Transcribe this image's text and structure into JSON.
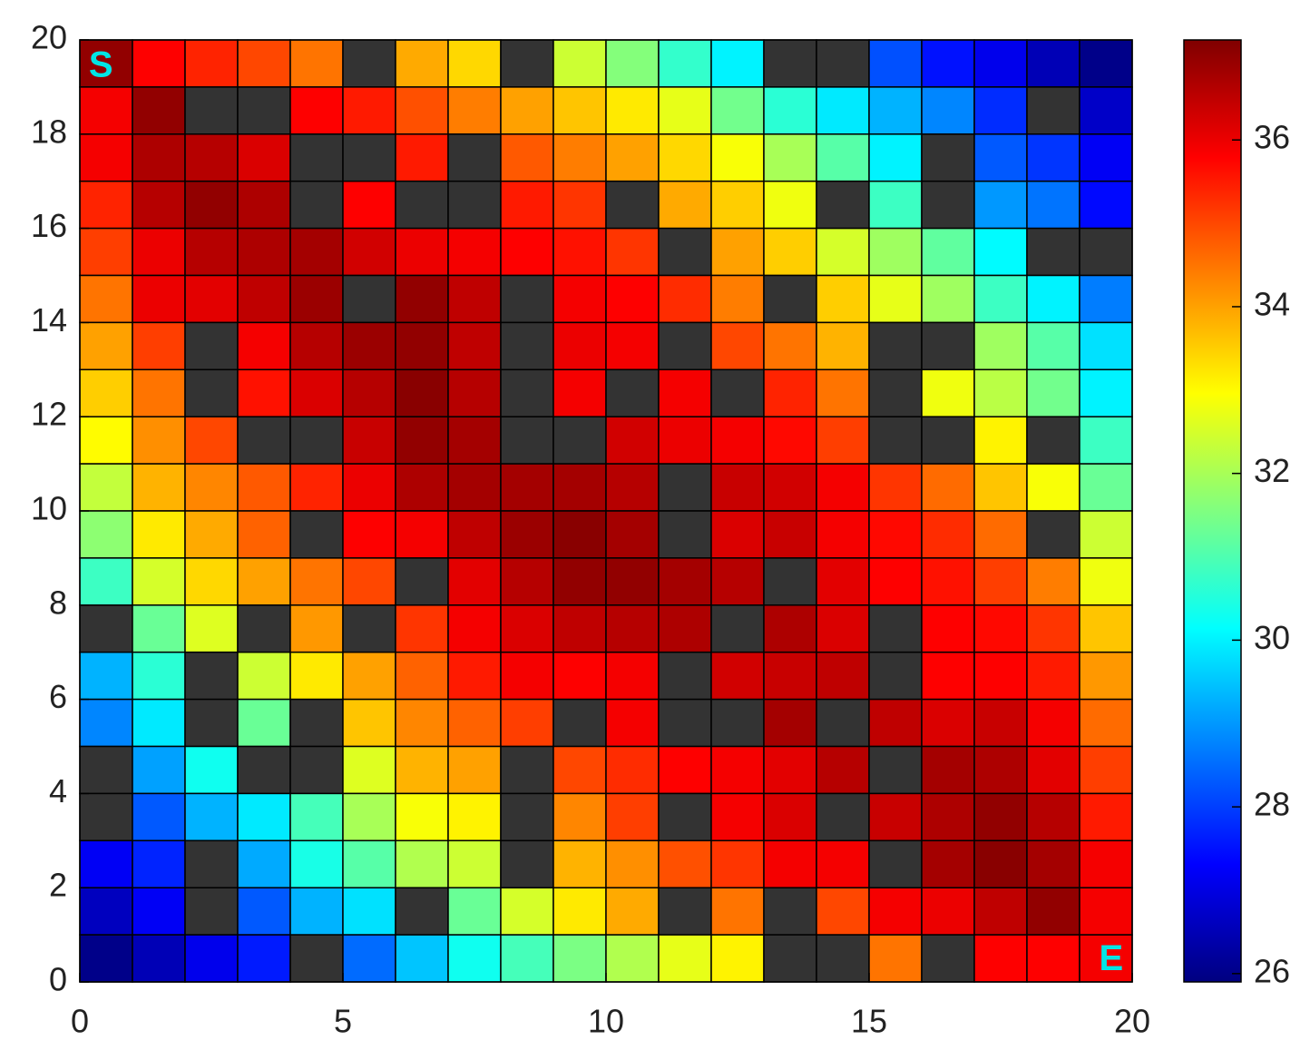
{
  "chart_data": {
    "type": "heatmap",
    "start_label": "S",
    "end_label": "E",
    "colormap": "jet",
    "missing_color": "#333333",
    "xlim": [
      0,
      20
    ],
    "ylim": [
      0,
      20
    ],
    "xticks": [
      0,
      5,
      10,
      15,
      20
    ],
    "yticks": [
      0,
      2,
      4,
      6,
      8,
      10,
      12,
      14,
      16,
      18,
      20
    ],
    "clim": [
      25.9,
      37.2
    ],
    "cticks": [
      26,
      28,
      30,
      32,
      34,
      36
    ],
    "z": [
      [
        37.0,
        35.8,
        35.4,
        35.0,
        34.5,
        null,
        33.9,
        33.4,
        null,
        32.4,
        31.6,
        30.7,
        30.0,
        null,
        null,
        28.2,
        27.5,
        27.1,
        26.5,
        26.0
      ],
      [
        35.9,
        37.0,
        null,
        null,
        35.8,
        35.5,
        34.9,
        34.4,
        34.0,
        33.6,
        33.2,
        32.7,
        31.4,
        30.6,
        29.9,
        29.3,
        28.8,
        27.8,
        null,
        26.7
      ],
      [
        35.9,
        36.7,
        36.6,
        36.2,
        null,
        null,
        35.5,
        null,
        34.8,
        34.4,
        34.0,
        33.4,
        32.9,
        32.0,
        31.1,
        30.0,
        null,
        28.3,
        27.9,
        27.2
      ],
      [
        35.4,
        36.6,
        37.0,
        36.7,
        null,
        35.8,
        null,
        null,
        35.5,
        35.2,
        null,
        33.9,
        33.5,
        32.8,
        null,
        30.8,
        null,
        29.0,
        28.6,
        27.4
      ],
      [
        35.1,
        36.0,
        36.6,
        36.7,
        36.8,
        36.3,
        36.0,
        35.9,
        35.8,
        35.6,
        35.2,
        null,
        34.0,
        33.5,
        32.5,
        31.9,
        31.2,
        30.1,
        null,
        null
      ],
      [
        34.5,
        36.0,
        36.1,
        36.5,
        36.9,
        null,
        37.0,
        36.5,
        null,
        35.9,
        35.8,
        35.3,
        34.4,
        null,
        33.5,
        32.7,
        31.9,
        30.8,
        30.0,
        28.7
      ],
      [
        34.0,
        35.1,
        null,
        35.9,
        36.6,
        36.9,
        37.0,
        36.5,
        null,
        36.0,
        35.9,
        null,
        35.0,
        34.5,
        33.8,
        null,
        null,
        31.9,
        31.1,
        29.8
      ],
      [
        33.5,
        34.5,
        null,
        35.6,
        36.2,
        36.6,
        37.1,
        36.6,
        null,
        35.9,
        null,
        35.9,
        null,
        35.4,
        34.5,
        null,
        32.8,
        32.2,
        31.4,
        30.0
      ],
      [
        33.0,
        34.2,
        35.0,
        null,
        null,
        36.4,
        37.0,
        36.8,
        null,
        null,
        36.3,
        36.0,
        35.9,
        35.7,
        35.1,
        null,
        null,
        33.1,
        null,
        30.8
      ],
      [
        32.3,
        33.8,
        34.3,
        34.8,
        35.4,
        36.0,
        36.7,
        36.8,
        36.8,
        36.8,
        36.6,
        null,
        36.4,
        36.3,
        35.9,
        35.2,
        34.6,
        33.6,
        32.9,
        31.3
      ],
      [
        31.7,
        33.2,
        33.9,
        34.7,
        null,
        35.8,
        35.9,
        36.5,
        36.9,
        37.1,
        36.8,
        null,
        36.2,
        36.4,
        35.9,
        35.7,
        35.3,
        34.6,
        null,
        32.4
      ],
      [
        30.8,
        32.5,
        33.4,
        34.0,
        34.5,
        35.0,
        null,
        36.1,
        36.6,
        37.0,
        37.0,
        36.8,
        36.6,
        null,
        36.1,
        35.8,
        35.6,
        35.1,
        34.4,
        32.8
      ],
      [
        null,
        31.3,
        32.6,
        null,
        34.1,
        null,
        35.2,
        35.9,
        36.2,
        36.5,
        36.6,
        36.7,
        null,
        36.7,
        36.2,
        null,
        35.8,
        35.7,
        35.2,
        33.6
      ],
      [
        29.3,
        30.6,
        null,
        32.4,
        33.2,
        34.0,
        34.7,
        35.5,
        35.9,
        35.8,
        35.9,
        null,
        36.3,
        36.4,
        36.5,
        null,
        35.8,
        35.8,
        35.5,
        34.1
      ],
      [
        28.8,
        29.9,
        null,
        31.3,
        null,
        33.6,
        34.3,
        34.7,
        35.1,
        null,
        35.9,
        null,
        null,
        36.8,
        null,
        36.5,
        36.2,
        36.4,
        35.9,
        34.6
      ],
      [
        null,
        29.1,
        30.3,
        null,
        null,
        32.6,
        33.8,
        34.0,
        null,
        35.0,
        35.3,
        35.8,
        35.9,
        36.1,
        36.6,
        null,
        36.8,
        36.7,
        36.1,
        35.1
      ],
      [
        null,
        28.3,
        29.3,
        29.9,
        30.9,
        32.0,
        32.9,
        33.1,
        null,
        34.3,
        35.1,
        null,
        35.9,
        36.2,
        null,
        36.4,
        36.7,
        37.0,
        36.6,
        35.5
      ],
      [
        27.2,
        27.7,
        null,
        29.2,
        30.4,
        31.1,
        32.1,
        32.4,
        null,
        33.8,
        34.2,
        34.9,
        35.2,
        35.9,
        35.9,
        null,
        36.8,
        37.1,
        36.8,
        35.9
      ],
      [
        26.6,
        27.2,
        null,
        28.3,
        29.3,
        29.8,
        null,
        31.3,
        32.5,
        33.2,
        33.9,
        null,
        34.5,
        null,
        35.0,
        35.9,
        36.0,
        36.5,
        37.0,
        35.9
      ],
      [
        26.0,
        26.5,
        27.1,
        27.6,
        null,
        28.5,
        29.5,
        30.3,
        30.9,
        31.5,
        32.1,
        32.7,
        33.1,
        null,
        null,
        34.5,
        null,
        35.8,
        35.8,
        35.9
      ]
    ]
  }
}
